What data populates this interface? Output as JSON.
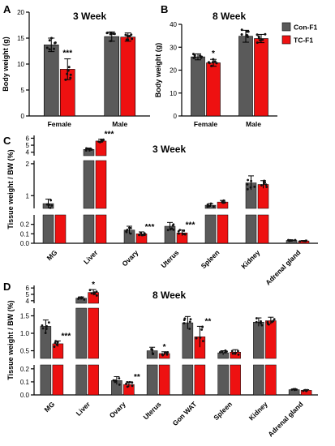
{
  "chart_data": [
    {
      "panel": "A",
      "type": "bar",
      "title": "3 Week",
      "ylabel": "Body weight (g)",
      "ylim": [
        0,
        20
      ],
      "yticks": [
        0,
        5,
        10,
        15,
        20
      ],
      "categories": [
        "Female",
        "Male"
      ],
      "series": [
        {
          "name": "Con-F1",
          "values": [
            13.7,
            15.3
          ],
          "errors": [
            1.3,
            0.9
          ]
        },
        {
          "name": "TC-F1",
          "values": [
            9.0,
            15.2
          ],
          "errors": [
            2.0,
            0.8
          ]
        }
      ],
      "significance": [
        {
          "category": "Female",
          "series": "TC-F1",
          "label": "***"
        }
      ]
    },
    {
      "panel": "B",
      "type": "bar",
      "title": "8 Week",
      "ylabel": "Body weight (g)",
      "ylim": [
        0,
        40
      ],
      "yticks": [
        0,
        10,
        20,
        30,
        40
      ],
      "categories": [
        "Female",
        "Male"
      ],
      "series": [
        {
          "name": "Con-F1",
          "values": [
            25.8,
            34.8
          ],
          "errors": [
            1.3,
            2.6
          ]
        },
        {
          "name": "TC-F1",
          "values": [
            23.2,
            33.8
          ],
          "errors": [
            1.5,
            1.8
          ]
        }
      ],
      "significance": [
        {
          "category": "Female",
          "series": "TC-F1",
          "label": "*"
        }
      ]
    },
    {
      "panel": "C",
      "type": "bar",
      "title": "3 Week",
      "ylabel": "Tissue weight / BW (%)",
      "axis_segments": [
        {
          "range": [
            0,
            0.3
          ],
          "ticks": [
            "0.0",
            "0.1",
            "0.2"
          ]
        },
        {
          "range": [
            0.6,
            2.1
          ],
          "ticks": [
            "1",
            "2"
          ]
        },
        {
          "range": [
            3.5,
            6.4
          ],
          "ticks": [
            "4",
            "5",
            "6"
          ]
        }
      ],
      "categories": [
        "MG",
        "Liver",
        "Ovary",
        "Uterus",
        "Spleen",
        "Kidney",
        "Adrenal gland"
      ],
      "series": [
        {
          "name": "Con-F1",
          "values": [
            0.75,
            4.4,
            0.14,
            0.18,
            0.7,
            1.4,
            0.03
          ],
          "errors": [
            0.14,
            0.17,
            0.04,
            0.04,
            0.05,
            0.22,
            0.004
          ]
        },
        {
          "name": "TC-F1",
          "values": [
            0.52,
            5.6,
            0.1,
            0.11,
            0.8,
            1.35,
            0.025
          ],
          "errors": [
            0.06,
            0.25,
            0.02,
            0.03,
            0.05,
            0.12,
            0.004
          ]
        }
      ],
      "significance": [
        {
          "category": "MG",
          "series": "TC-F1",
          "label": "***"
        },
        {
          "category": "Liver",
          "series": "TC-F1",
          "label": "***"
        },
        {
          "category": "Ovary",
          "series": "TC-F1",
          "label": "***"
        },
        {
          "category": "Uterus",
          "series": "TC-F1",
          "label": "***"
        }
      ]
    },
    {
      "panel": "D",
      "type": "bar",
      "title": "8 Week",
      "ylabel": "Tissue weight / BW (%)",
      "axis_segments": [
        {
          "range": [
            0,
            0.23
          ],
          "ticks": [
            "0.0",
            "0.1",
            "0.2"
          ]
        },
        {
          "range": [
            0.28,
            1.72
          ],
          "ticks": [
            "0.5",
            "1.0",
            "1.5"
          ]
        },
        {
          "range": [
            3.6,
            6.4
          ],
          "ticks": [
            "4",
            "5",
            "6"
          ]
        }
      ],
      "categories": [
        "MG",
        "Liver",
        "Ovary",
        "Uterus",
        "Gon WAT",
        "Spleen",
        "Kidney",
        "Adrenal gland"
      ],
      "series": [
        {
          "name": "Con-F1",
          "values": [
            1.2,
            4.4,
            0.11,
            0.5,
            1.3,
            0.44,
            1.32,
            0.04
          ],
          "errors": [
            0.18,
            0.2,
            0.03,
            0.1,
            0.18,
            0.06,
            0.12,
            0.005
          ]
        },
        {
          "name": "TC-F1",
          "values": [
            0.7,
            5.3,
            0.08,
            0.42,
            0.9,
            0.46,
            1.36,
            0.035
          ],
          "errors": [
            0.08,
            0.45,
            0.02,
            0.05,
            0.3,
            0.07,
            0.1,
            0.005
          ]
        }
      ],
      "significance": [
        {
          "category": "MG",
          "series": "TC-F1",
          "label": "***"
        },
        {
          "category": "Liver",
          "series": "TC-F1",
          "label": "*"
        },
        {
          "category": "Ovary",
          "series": "TC-F1",
          "label": "**"
        },
        {
          "category": "Uterus",
          "series": "TC-F1",
          "label": "*"
        },
        {
          "category": "Gon WAT",
          "series": "TC-F1",
          "label": "**"
        }
      ]
    }
  ],
  "legend": {
    "items": [
      {
        "label": "Con-F1",
        "color": "#5a5a5a"
      },
      {
        "label": "TC-F1",
        "color": "#ee1111"
      }
    ]
  },
  "colors": {
    "con": "#5a5a5a",
    "tc": "#ee1111",
    "dots": "#111111"
  }
}
